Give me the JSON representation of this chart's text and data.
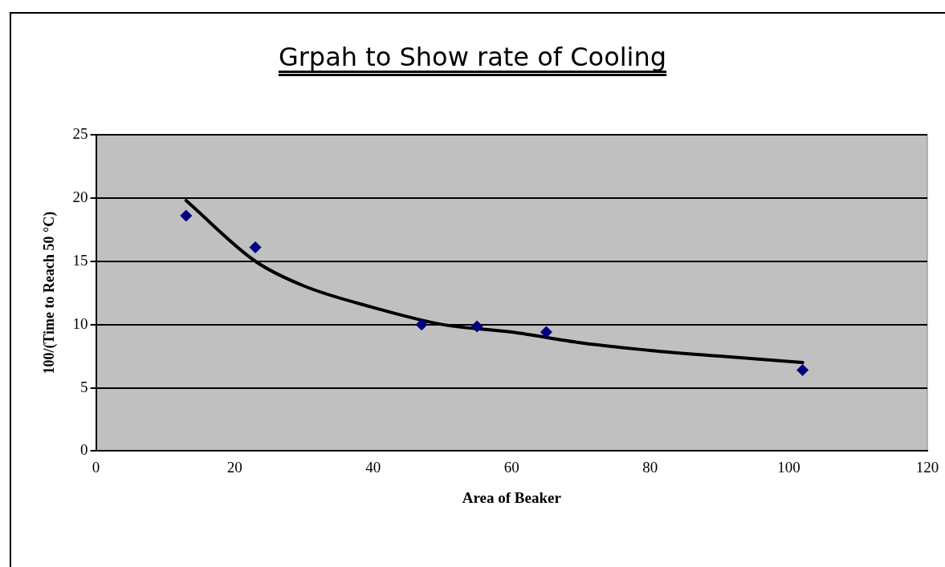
{
  "chart_data": {
    "type": "scatter",
    "title": "Grpah to Show rate of Cooling",
    "xlabel": "Area of Beaker",
    "ylabel": "100/(Time to Reach 50 °C)",
    "xlim": [
      0,
      120
    ],
    "xticks": [
      0,
      20,
      40,
      60,
      80,
      100,
      120
    ],
    "ylim": [
      0,
      25
    ],
    "yticks": [
      0,
      5,
      10,
      15,
      20,
      25
    ],
    "grid": "y",
    "legend": false,
    "marker": "diamond",
    "series": [
      {
        "type": "scatter",
        "color": "#000080",
        "x": [
          13,
          23,
          47,
          55,
          65,
          102
        ],
        "values": [
          18.6,
          16.1,
          10.0,
          9.85,
          9.4,
          6.4
        ]
      },
      {
        "type": "line",
        "color": "#000000",
        "marker": "none",
        "x": [
          13,
          23,
          30,
          40,
          50,
          60,
          70,
          80,
          90,
          102
        ],
        "values": [
          19.8,
          15.0,
          13.05,
          11.35,
          10.0,
          9.4,
          8.55,
          7.95,
          7.5,
          7.0
        ]
      }
    ]
  }
}
